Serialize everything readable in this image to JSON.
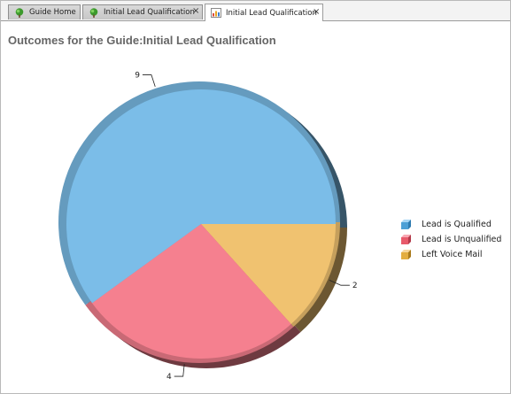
{
  "tabs": [
    {
      "label": "Guide Home",
      "icon": "tree-icon",
      "closable": false
    },
    {
      "label": "Initial Lead Qualification",
      "icon": "tree-icon",
      "closable": true
    },
    {
      "label": "Initial Lead Qualification",
      "icon": "chart-icon",
      "closable": true,
      "active": true
    }
  ],
  "close_glyph": "×",
  "page_title": "Outcomes for the Guide:Initial Lead Qualification",
  "colors": {
    "qualified": "#7bbde8",
    "unqualified": "#f5808f",
    "voicemail": "#f0c270"
  },
  "chart_data": {
    "type": "pie",
    "title": "Outcomes for the Guide:Initial Lead Qualification",
    "slices": [
      {
        "name": "Lead is Qualified",
        "value": 9,
        "color": "#7bbde8"
      },
      {
        "name": "Lead is Unqualified",
        "value": 4,
        "color": "#f5808f"
      },
      {
        "name": "Left Voice Mail",
        "value": 2,
        "color": "#f0c270"
      }
    ],
    "legend_position": "right"
  }
}
